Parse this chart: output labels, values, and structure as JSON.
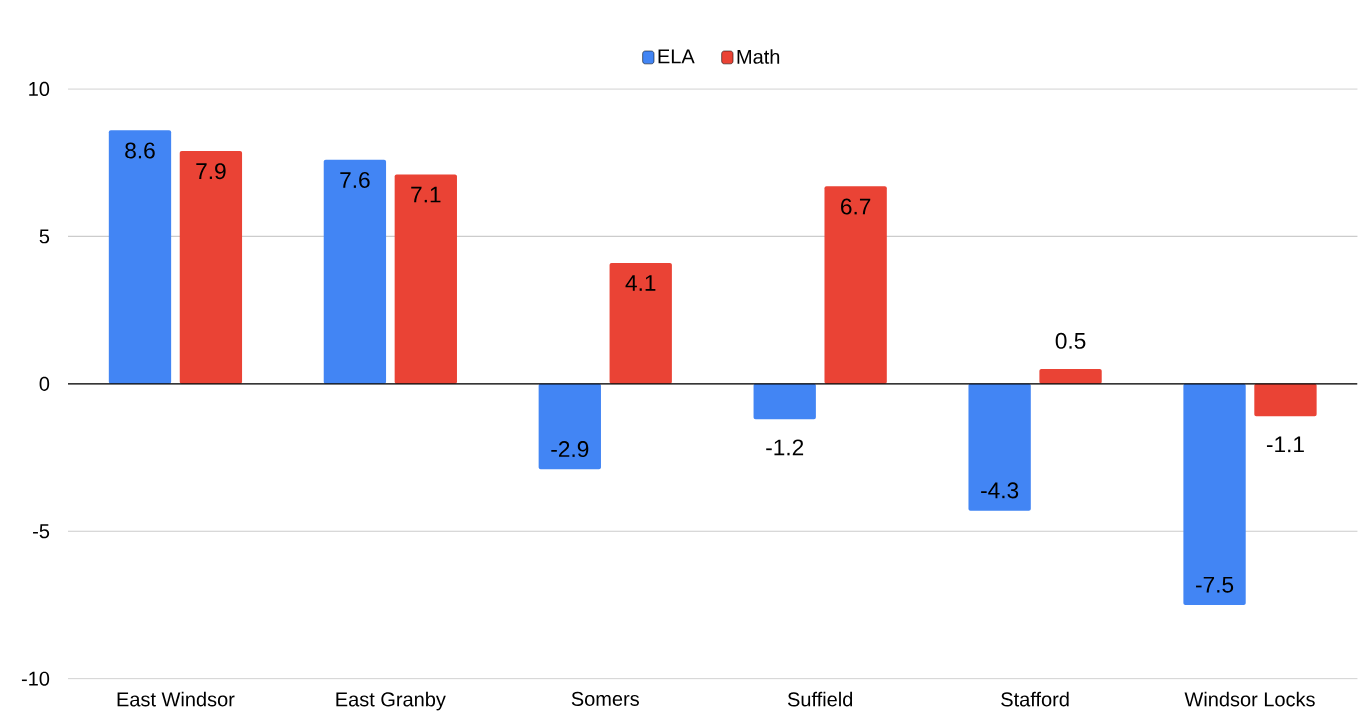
{
  "chart_data": {
    "type": "bar",
    "categories": [
      "East Windsor",
      "East Granby",
      "Somers",
      "Suffield",
      "Stafford",
      "Windsor Locks"
    ],
    "series": [
      {
        "name": "ELA",
        "color": "#4285f4",
        "values": [
          8.6,
          7.6,
          -2.9,
          -1.2,
          -4.3,
          -7.5
        ]
      },
      {
        "name": "Math",
        "color": "#ea4335",
        "values": [
          7.9,
          7.1,
          4.1,
          6.7,
          0.5,
          -1.1
        ]
      }
    ],
    "ylim": [
      -10,
      10
    ],
    "yticks": [
      -10,
      -5,
      0,
      5,
      10
    ],
    "grid": "y",
    "legend": "top",
    "data_labels": true
  }
}
